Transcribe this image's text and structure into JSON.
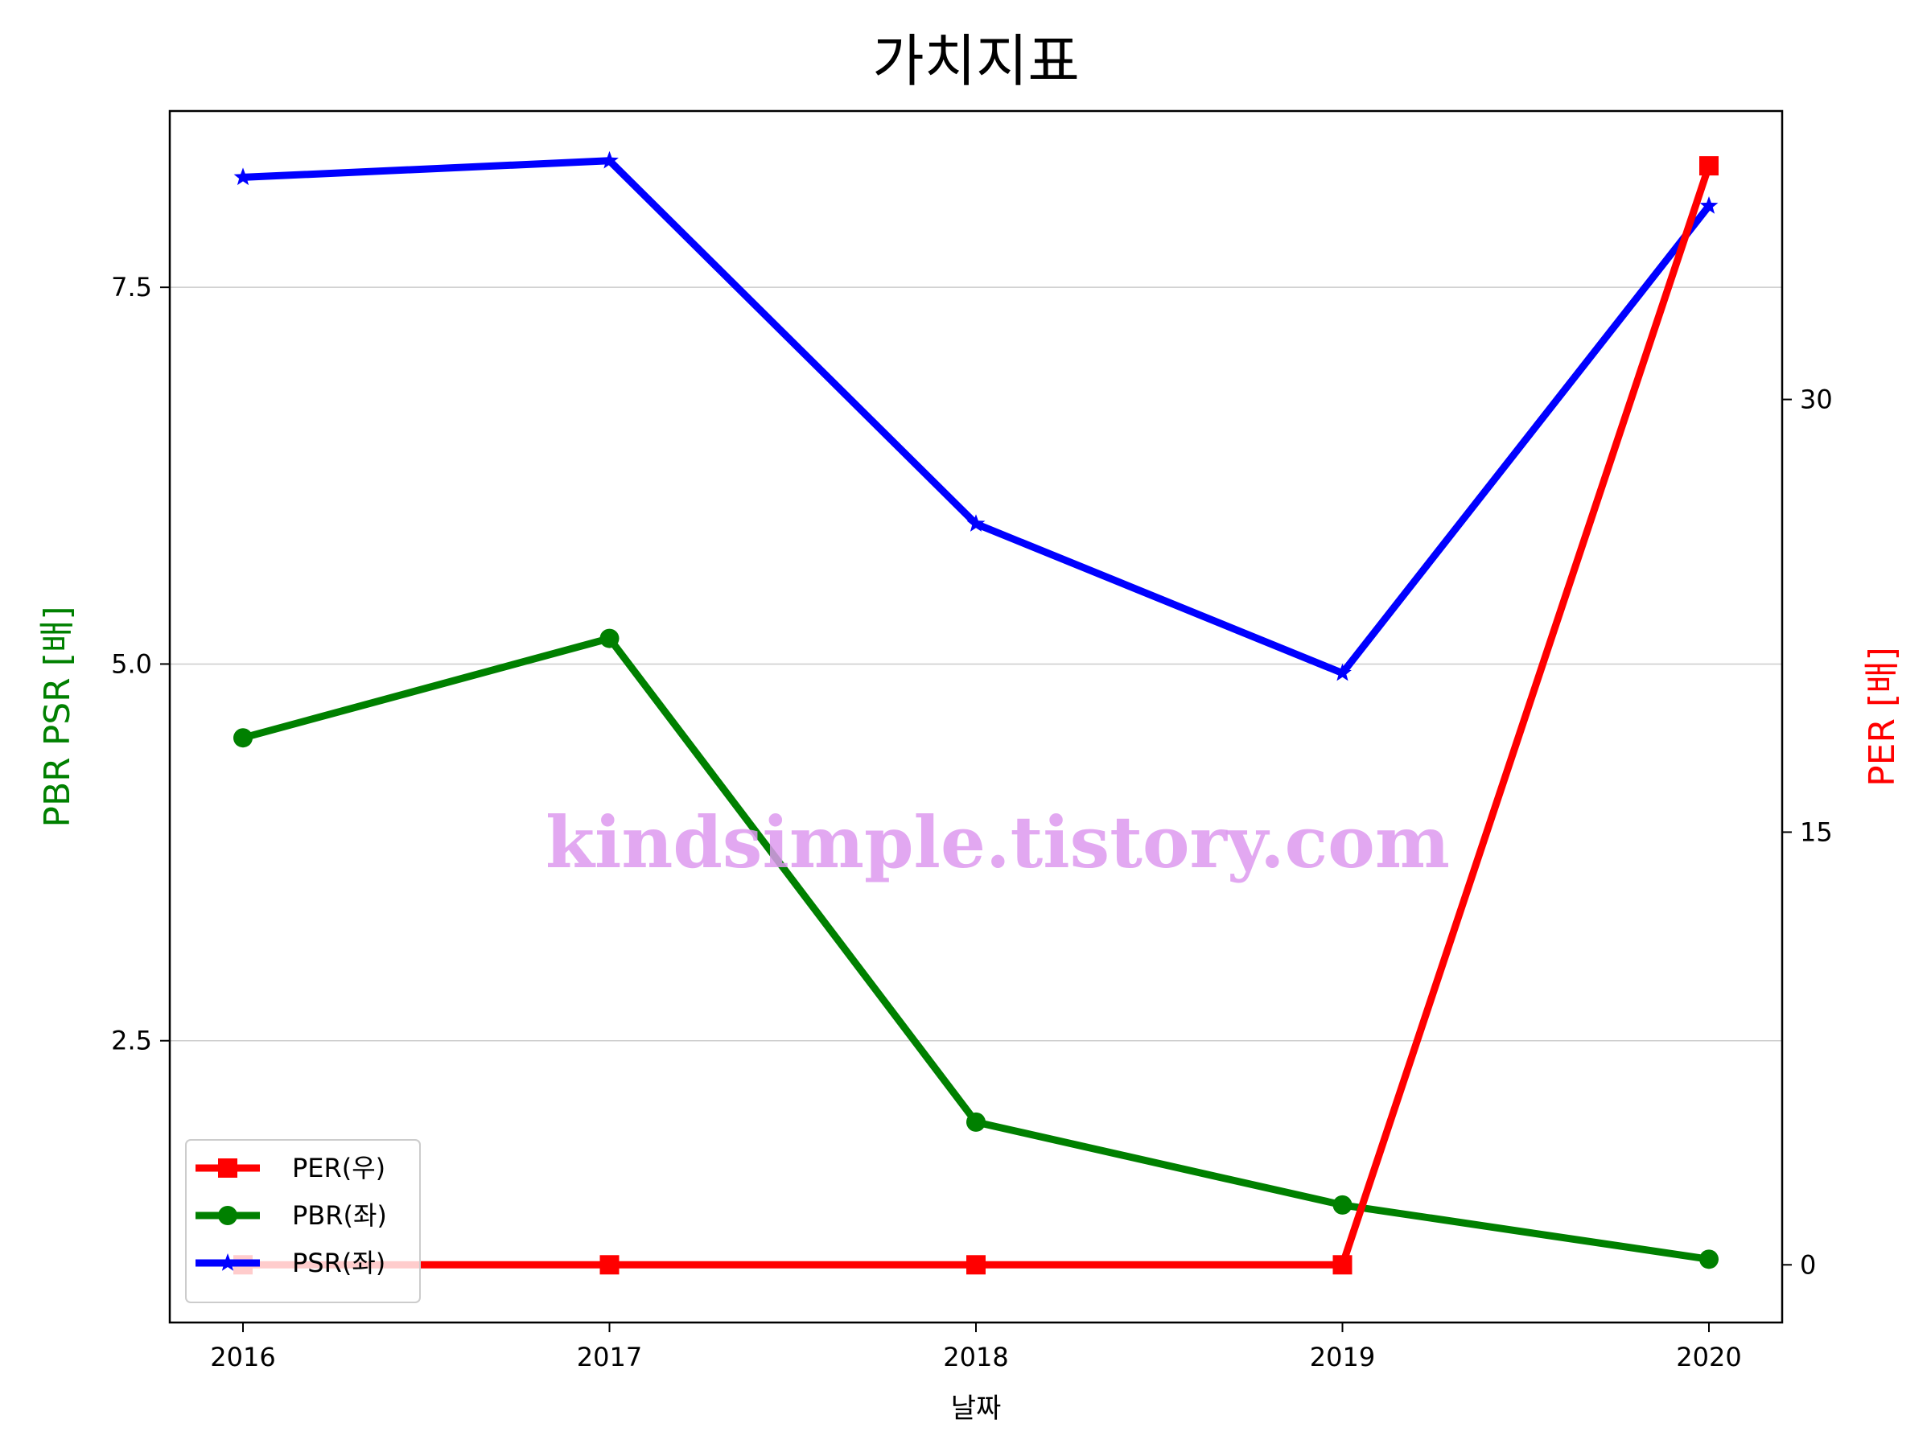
{
  "chart_data": {
    "type": "line",
    "title": "가치지표",
    "xlabel": "날짜",
    "ylabel_left": "PBR PSR [배]",
    "ylabel_right": "PER [배]",
    "categories": [
      "2016",
      "2017",
      "2018",
      "2019",
      "2020"
    ],
    "left_axis": {
      "ylim": [
        0.63,
        8.67
      ],
      "ticks": [
        2.5,
        5.0,
        7.5
      ],
      "tick_labels": [
        "2.5",
        "5.0",
        "7.5"
      ]
    },
    "right_axis": {
      "ylim": [
        -2.0,
        40.0
      ],
      "ticks": [
        0,
        15,
        30
      ],
      "tick_labels": [
        "0",
        "15",
        "30"
      ]
    },
    "series": [
      {
        "name": "PER(우)",
        "axis": "right",
        "color": "#ff0000",
        "marker": "square",
        "values": [
          0,
          0,
          0,
          0,
          38.1
        ]
      },
      {
        "name": "PBR(좌)",
        "axis": "left",
        "color": "#008000",
        "marker": "circle",
        "values": [
          4.51,
          5.17,
          1.96,
          1.41,
          1.05
        ]
      },
      {
        "name": "PSR(좌)",
        "axis": "left",
        "color": "#0000ff",
        "marker": "star",
        "values": [
          8.23,
          8.34,
          5.93,
          4.94,
          8.04
        ]
      }
    ],
    "draw_order": [
      "PBR(좌)",
      "PSR(좌)",
      "PER(우)"
    ],
    "grid": "horizontal-left-axis",
    "legend": "lower-left",
    "watermark": "kindsimple.tistory.com"
  }
}
